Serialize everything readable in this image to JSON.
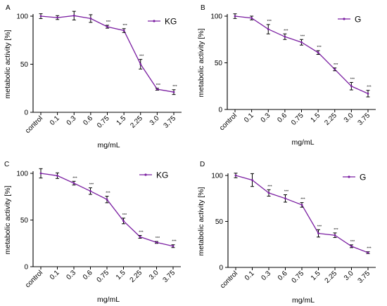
{
  "figure": {
    "xlabel": "mg/mL",
    "ylabel": "metabolic activity [%]"
  },
  "chart_data": [
    {
      "type": "line",
      "panel": "A",
      "series": [
        {
          "name": "KG",
          "values": [
            100,
            98.5,
            100.5,
            97.5,
            89,
            85,
            50,
            24,
            21
          ]
        }
      ],
      "errors": [
        2.5,
        2,
        4.5,
        4,
        1.5,
        2,
        5,
        1,
        2.5
      ],
      "significance": [
        "",
        "",
        "",
        "",
        "***",
        "***",
        "***",
        "***",
        "***"
      ],
      "categories": [
        "control",
        "0.1",
        "0.3",
        "0.6",
        "0.75",
        "1.5",
        "2.25",
        "3.0",
        "3.75"
      ],
      "xlabel": "mg/mL",
      "ylabel": "metabolic activity [%]",
      "ylim": [
        0,
        100
      ],
      "yticks": [
        0,
        50,
        100
      ],
      "grid": false,
      "legend_position": "top-right",
      "color": "#7b1fa2"
    },
    {
      "type": "line",
      "panel": "B",
      "series": [
        {
          "name": "G",
          "values": [
            100,
            98,
            86,
            78,
            72,
            61,
            43,
            25,
            17
          ]
        }
      ],
      "errors": [
        2.5,
        2,
        5,
        3,
        3,
        2,
        1.5,
        4,
        3.5
      ],
      "significance": [
        "",
        "",
        "***",
        "***",
        "***",
        "***",
        "***",
        "***",
        "***"
      ],
      "categories": [
        "control",
        "0.1",
        "0.3",
        "0.6",
        "0.75",
        "1.5",
        "2.25",
        "3.0",
        "3.75"
      ],
      "xlabel": "mg/mL",
      "ylabel": "metabolic activity [%]",
      "ylim": [
        0,
        100
      ],
      "yticks": [
        0,
        50,
        100
      ],
      "grid": false,
      "legend_position": "top-right",
      "color": "#7b1fa2"
    },
    {
      "type": "line",
      "panel": "C",
      "series": [
        {
          "name": "KG",
          "values": [
            100,
            97.5,
            89.5,
            81,
            72,
            49,
            32,
            26,
            22
          ]
        }
      ],
      "errors": [
        5,
        3,
        2,
        3.5,
        3.5,
        3,
        1.5,
        1,
        1.5
      ],
      "significance": [
        "",
        "",
        "***",
        "***",
        "***",
        "***",
        "***",
        "***",
        "***"
      ],
      "categories": [
        "control",
        "0.1",
        "0.3",
        "0.6",
        "0.75",
        "1.5",
        "2.25",
        "3.0",
        "3.75"
      ],
      "xlabel": "mg/mL",
      "ylabel": "metabolic activity [%]",
      "ylim": [
        0,
        100
      ],
      "yticks": [
        0,
        50,
        100
      ],
      "grid": false,
      "legend_position": "top-right",
      "color": "#7b1fa2"
    },
    {
      "type": "line",
      "panel": "D",
      "series": [
        {
          "name": "G",
          "values": [
            100,
            95,
            81,
            75,
            68,
            37,
            35,
            23,
            16
          ]
        }
      ],
      "errors": [
        2.5,
        7,
        3.5,
        4,
        2.5,
        4,
        2.5,
        1.5,
        1
      ],
      "significance": [
        "",
        "",
        "***",
        "***",
        "***",
        "***",
        "***",
        "***",
        "***"
      ],
      "categories": [
        "control",
        "0.1",
        "0.3",
        "0.6",
        "0.75",
        "1.5",
        "2.25",
        "3.0",
        "3.75"
      ],
      "xlabel": "mg/mL",
      "ylabel": "metabolic activity [%]",
      "ylim": [
        0,
        100
      ],
      "yticks": [
        0,
        50,
        100
      ],
      "grid": false,
      "legend_position": "top-right",
      "color": "#7b1fa2"
    }
  ]
}
